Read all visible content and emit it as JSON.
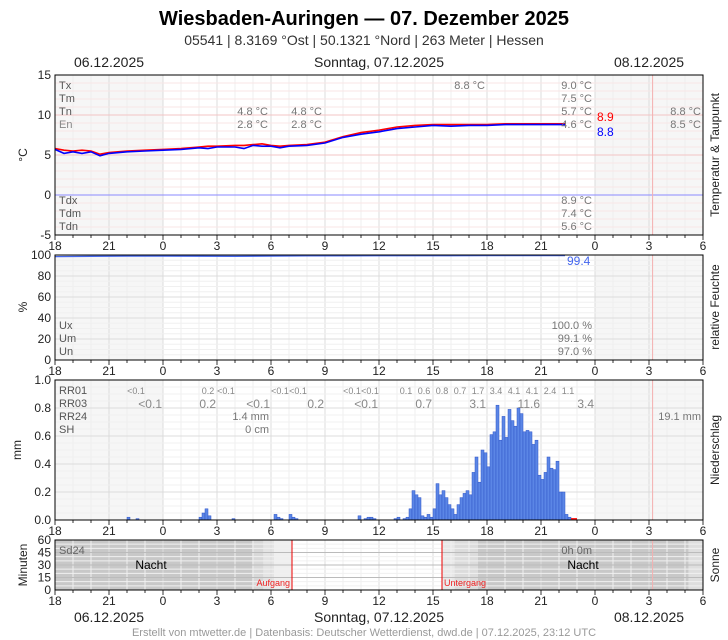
{
  "header": {
    "title": "Wiesbaden-Auringen  —  07. Dezember 2025",
    "subtitle": "05541  |  8.3169 °Ost  |  50.1321 °Nord  |  263 Meter  |  Hessen"
  },
  "dates": {
    "left": "06.12.2025",
    "center": "Sonntag, 07.12.2025",
    "right": "08.12.2025"
  },
  "footer": "Erstellt von mtwetter.de | Datenbasis: Deutscher Wetterdienst, dwd.de | 07.12.2025, 23:12 UTC",
  "colors": {
    "temperature": "#ff0000",
    "dewpoint": "#0000ff",
    "humidity": "#4466ee",
    "precip_bar": "#5b86e6",
    "now_line": "#f4b0b0",
    "night": "#c8c8c8"
  },
  "chart_data": [
    {
      "type": "line",
      "panel": "temperature",
      "ylabel": "°C",
      "right_label": "Temperatur & Taupunkt",
      "ylim": [
        -5,
        15
      ],
      "y_ticks": [
        "15",
        "10",
        "5",
        "0",
        "-5"
      ],
      "x_ticks": [
        "18",
        "21",
        "0",
        "3",
        "6",
        "9",
        "12",
        "15",
        "18",
        "21",
        "0",
        "3",
        "6"
      ],
      "x_range": [
        "06.12 18:00",
        "08.12 06:00"
      ],
      "grid": true,
      "row_labels_top": [
        "Tx",
        "Tm",
        "Tn",
        "En"
      ],
      "row_labels_bottom": [
        "Tdx",
        "Tdm",
        "Tdn"
      ],
      "stats_06_a": {
        "Tn": "4.8 °C",
        "En": "2.8 °C"
      },
      "stats_06_b": {
        "Tn": "4.8 °C",
        "En": "2.8 °C"
      },
      "stats_07_tx_day": "8.8 °C",
      "stats_07": {
        "Tx": "9.0 °C",
        "Tm": "7.5 °C",
        "Tn": "5.7 °C",
        "En": "4.6 °C",
        "Tdx": "8.9 °C",
        "Tdm": "7.4 °C",
        "Tdn": "5.6 °C"
      },
      "stats_08": {
        "Tn": "8.8 °C",
        "En": "8.5 °C"
      },
      "current": {
        "temperature": "8.9",
        "dewpoint": "8.8"
      },
      "series": [
        {
          "key": "temperature",
          "times": [
            "06.12 18:00",
            "06.12 18:30",
            "06.12 19:00",
            "06.12 19:30",
            "06.12 20:00",
            "06.12 20:30",
            "06.12 21:00",
            "06.12 22:00",
            "06.12 23:00",
            "07.12 00:00",
            "07.12 01:00",
            "07.12 02:00",
            "07.12 02:30",
            "07.12 03:00",
            "07.12 04:00",
            "07.12 04:30",
            "07.12 05:00",
            "07.12 05:30",
            "07.12 06:00",
            "07.12 06:30",
            "07.12 07:00",
            "07.12 08:00",
            "07.12 09:00",
            "07.12 10:00",
            "07.12 11:00",
            "07.12 12:00",
            "07.12 13:00",
            "07.12 14:00",
            "07.12 15:00",
            "07.12 16:00",
            "07.12 17:00",
            "07.12 18:00",
            "07.12 19:00",
            "07.12 20:00",
            "07.12 21:00",
            "07.12 22:00",
            "07.12 22:20"
          ],
          "values": [
            5.8,
            5.6,
            5.5,
            5.6,
            5.5,
            5.1,
            5.3,
            5.5,
            5.6,
            5.7,
            5.8,
            6.0,
            6.1,
            6.1,
            6.2,
            6.2,
            6.3,
            6.4,
            6.2,
            6.1,
            6.2,
            6.3,
            6.6,
            7.3,
            7.8,
            8.1,
            8.5,
            8.7,
            8.8,
            8.8,
            8.8,
            8.8,
            8.9,
            8.9,
            8.9,
            8.9,
            8.9
          ]
        },
        {
          "key": "dewpoint",
          "times": [
            "06.12 18:00",
            "06.12 18:30",
            "06.12 19:00",
            "06.12 19:30",
            "06.12 20:00",
            "06.12 20:30",
            "06.12 21:00",
            "06.12 22:00",
            "06.12 23:00",
            "07.12 00:00",
            "07.12 01:00",
            "07.12 02:00",
            "07.12 02:30",
            "07.12 03:00",
            "07.12 04:00",
            "07.12 04:30",
            "07.12 05:00",
            "07.12 05:30",
            "07.12 06:00",
            "07.12 06:30",
            "07.12 07:00",
            "07.12 08:00",
            "07.12 09:00",
            "07.12 10:00",
            "07.12 11:00",
            "07.12 12:00",
            "07.12 13:00",
            "07.12 14:00",
            "07.12 15:00",
            "07.12 16:00",
            "07.12 17:00",
            "07.12 18:00",
            "07.12 19:00",
            "07.12 20:00",
            "07.12 21:00",
            "07.12 22:00",
            "07.12 22:20"
          ],
          "values": [
            5.7,
            5.2,
            5.4,
            5.2,
            5.4,
            4.9,
            5.2,
            5.4,
            5.5,
            5.6,
            5.7,
            5.9,
            5.8,
            6.0,
            6.0,
            5.8,
            6.2,
            6.1,
            6.1,
            5.9,
            6.1,
            6.2,
            6.5,
            7.2,
            7.6,
            7.9,
            8.3,
            8.5,
            8.7,
            8.6,
            8.7,
            8.7,
            8.8,
            8.8,
            8.8,
            8.8,
            8.8
          ]
        }
      ]
    },
    {
      "type": "line",
      "panel": "humidity",
      "ylabel": "%",
      "right_label": "relative Feuchte",
      "ylim": [
        0,
        100
      ],
      "y_ticks": [
        "100",
        "80",
        "60",
        "40",
        "20",
        "0"
      ],
      "row_labels": [
        "Ux",
        "Um",
        "Un"
      ],
      "stats_07": {
        "Ux": "100.0 %",
        "Um": "99.1 %",
        "Un": "97.0 %"
      },
      "current": "99.4",
      "series": [
        {
          "key": "humidity",
          "times": [
            "06.12 18:00",
            "06.12 20:00",
            "06.12 22:00",
            "07.12 00:00",
            "07.12 02:00",
            "07.12 04:00",
            "07.12 06:00",
            "07.12 08:00",
            "07.12 10:00",
            "07.12 12:00",
            "07.12 14:00",
            "07.12 16:00",
            "07.12 18:00",
            "07.12 20:00",
            "07.12 22:20"
          ],
          "values": [
            98.5,
            98.8,
            99.0,
            99.0,
            98.9,
            98.8,
            99.0,
            99.1,
            99.2,
            99.3,
            99.3,
            99.3,
            99.4,
            99.4,
            99.4
          ]
        }
      ]
    },
    {
      "type": "bar",
      "panel": "precipitation",
      "ylabel": "mm",
      "right_label": "Niederschlag",
      "ylim": [
        0,
        1.0
      ],
      "y_ticks": [
        "1.0",
        "0.8",
        "0.6",
        "0.4",
        "0.2",
        "0.0"
      ],
      "row_labels": [
        "RR01",
        "RR03",
        "RR24",
        "SH"
      ],
      "rr01": [
        [
          "06.12 22:30",
          "<0.1"
        ],
        [
          "07.12 02:30",
          "0.2"
        ],
        [
          "07.12 03:30",
          "<0.1"
        ],
        [
          "07.12 06:30",
          "<0.1"
        ],
        [
          "07.12 07:30",
          "<0.1"
        ],
        [
          "07.12 10:30",
          "<0.1"
        ],
        [
          "07.12 11:30",
          "<0.1"
        ],
        [
          "07.12 13:30",
          "0.1"
        ],
        [
          "07.12 14:30",
          "0.6"
        ],
        [
          "07.12 15:30",
          "0.8"
        ],
        [
          "07.12 16:30",
          "0.7"
        ],
        [
          "07.12 17:30",
          "1.7"
        ],
        [
          "07.12 18:30",
          "3.4"
        ],
        [
          "07.12 19:30",
          "4.1"
        ],
        [
          "07.12 20:30",
          "4.1"
        ],
        [
          "07.12 21:30",
          "2.4"
        ],
        [
          "07.12 22:30",
          "1.1"
        ]
      ],
      "rr03": [
        [
          "07.12 00:00",
          "<0.1"
        ],
        [
          "07.12 03:00",
          "0.2"
        ],
        [
          "07.12 06:00",
          "<0.1"
        ],
        [
          "07.12 09:00",
          "0.2"
        ],
        [
          "07.12 12:00",
          "<0.1"
        ],
        [
          "07.12 15:00",
          "0.7"
        ],
        [
          "07.12 18:00",
          "3.1"
        ],
        [
          "07.12 21:00",
          "11.6"
        ],
        [
          "08.12 00:00",
          "3.4"
        ]
      ],
      "rr24_06": "1.4 mm",
      "rr24_08": "19.1 mm",
      "sh_06": "0 cm",
      "early_bars": [
        [
          "06.12 22:00",
          0.02
        ],
        [
          "06.12 22:30",
          0.01
        ],
        [
          "07.12 02:00",
          0.02
        ],
        [
          "07.12 02:10",
          0.05
        ],
        [
          "07.12 02:20",
          0.08
        ],
        [
          "07.12 02:30",
          0.03
        ],
        [
          "07.12 03:50",
          0.01
        ],
        [
          "07.12 06:10",
          0.04
        ],
        [
          "07.12 06:20",
          0.02
        ],
        [
          "07.12 06:30",
          0.01
        ],
        [
          "07.12 07:00",
          0.04
        ],
        [
          "07.12 07:10",
          0.02
        ],
        [
          "07.12 07:20",
          0.01
        ],
        [
          "07.12 10:50",
          0.03
        ],
        [
          "07.12 11:10",
          0.01
        ],
        [
          "07.12 11:20",
          0.02
        ],
        [
          "07.12 11:30",
          0.02
        ],
        [
          "07.12 11:40",
          0.01
        ],
        [
          "07.12 12:50",
          0.01
        ],
        [
          "07.12 13:00",
          0.02
        ]
      ],
      "main_bars": {
        "start": "07.12 13:20",
        "step_min": 10,
        "values": [
          0.01,
          0.02,
          0.08,
          0.21,
          0.18,
          0.16,
          0.03,
          0.02,
          0.04,
          0.02,
          0.08,
          0.26,
          0.18,
          0.21,
          0.16,
          0.11,
          0.08,
          0.04,
          0.11,
          0.16,
          0.19,
          0.21,
          0.18,
          0.34,
          0.45,
          0.27,
          0.5,
          0.48,
          0.38,
          0.61,
          0.63,
          0.82,
          0.57,
          0.74,
          0.59,
          0.79,
          0.71,
          0.67,
          0.8,
          0.76,
          0.63,
          0.64,
          0.63,
          0.54,
          0.57,
          0.32,
          0.29,
          0.34,
          0.45,
          0.37,
          0.36,
          0.42,
          0.2,
          0.2,
          0.04,
          0.02
        ]
      }
    },
    {
      "type": "area",
      "panel": "sunshine",
      "ylabel": "Minuten",
      "right_label": "Sonne",
      "ylim": [
        0,
        60
      ],
      "y_ticks": [
        "60",
        "45",
        "30",
        "15",
        "0"
      ],
      "row_label": "Sd24",
      "sd24_07": "0h 0m",
      "night_label": "Nacht",
      "sunrise_label": "Aufgang",
      "sunset_label": "Untergang",
      "sunrise": "07.12 07:10",
      "sunset": "07.12 15:30"
    }
  ]
}
